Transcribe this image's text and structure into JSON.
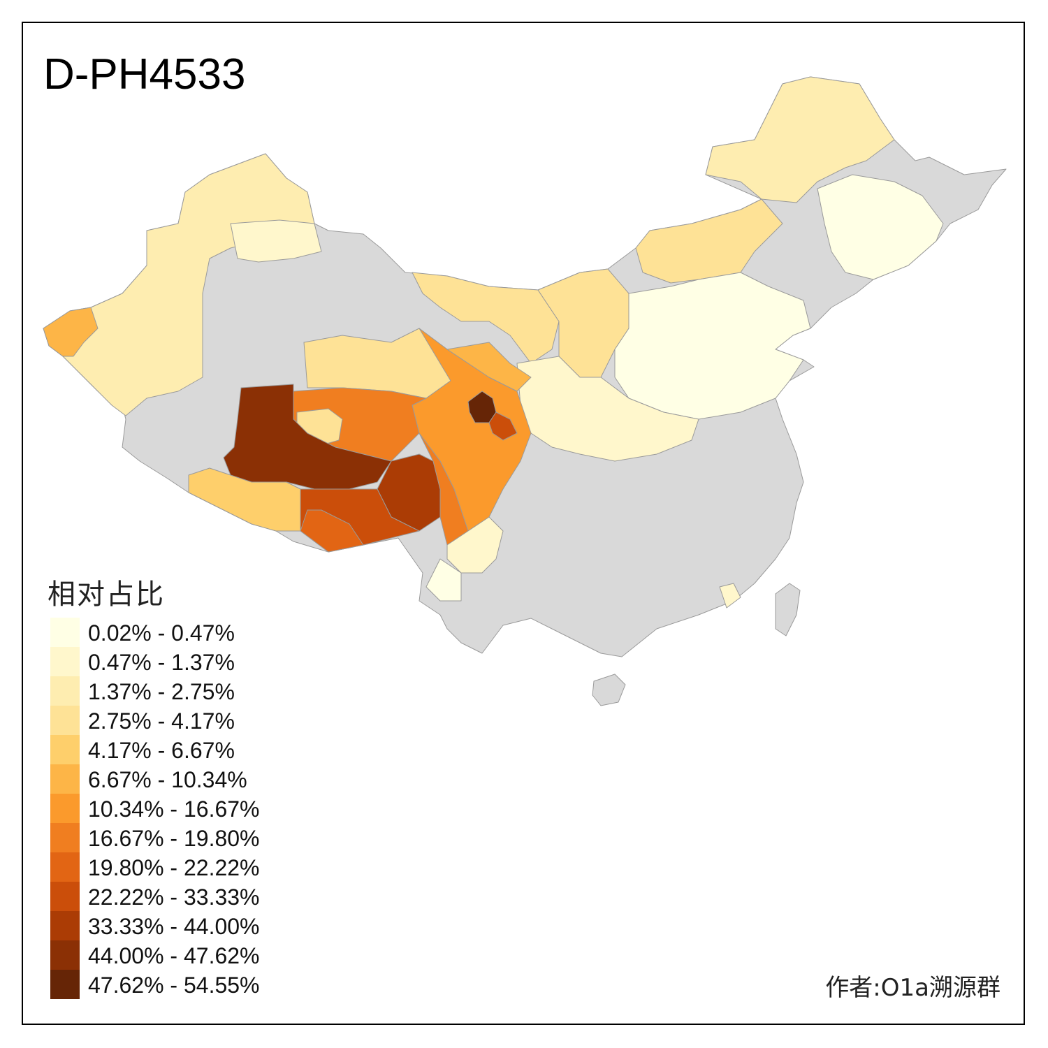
{
  "title": "D-PH4533",
  "legend": {
    "title": "相对占比",
    "items": [
      {
        "label": "0.02% - 0.47%",
        "color": "#FFFFE5"
      },
      {
        "label": "0.47% - 1.37%",
        "color": "#FFF7CC"
      },
      {
        "label": "1.37% - 2.75%",
        "color": "#FEEDB0"
      },
      {
        "label": "2.75% - 4.17%",
        "color": "#FEE296"
      },
      {
        "label": "4.17% - 6.67%",
        "color": "#FECF6B"
      },
      {
        "label": "6.67% - 10.34%",
        "color": "#FDB547"
      },
      {
        "label": "10.34% - 16.67%",
        "color": "#FB9A2C"
      },
      {
        "label": "16.67% - 19.80%",
        "color": "#F07E20"
      },
      {
        "label": "19.80% - 22.22%",
        "color": "#E26514"
      },
      {
        "label": "22.22% - 33.33%",
        "color": "#CB4E0A"
      },
      {
        "label": "33.33% - 44.00%",
        "color": "#AB3C05"
      },
      {
        "label": "44.00% - 47.62%",
        "color": "#8B3005"
      },
      {
        "label": "47.62% - 54.55%",
        "color": "#662506"
      }
    ]
  },
  "no_data_color": "#D9D9D9",
  "author": "作者:O1a溯源群"
}
